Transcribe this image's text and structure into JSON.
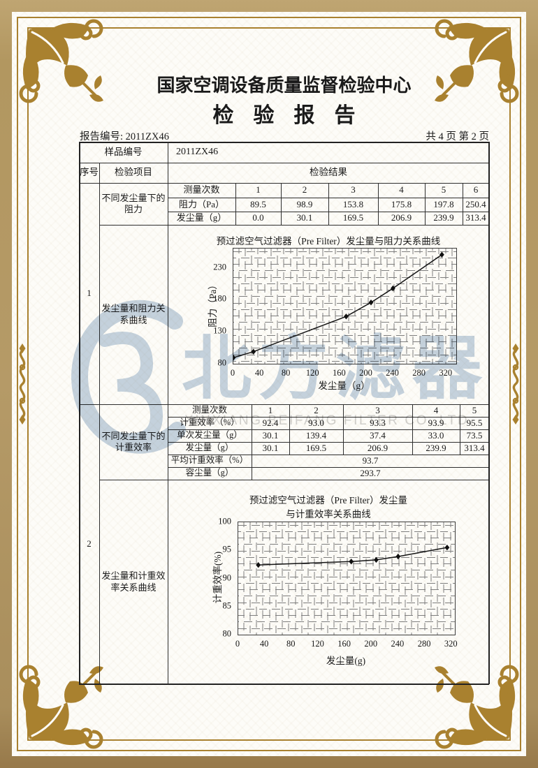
{
  "report": {
    "center_name": "国家空调设备质量监督检验中心",
    "title": "检验报告",
    "report_no": "报告编号: 2011ZX46",
    "page_info": "共 4 页 第 2 页",
    "sample_no_label": "样品编号",
    "sample_no_value": "2011ZX46"
  },
  "table": {
    "col_seq": "序号",
    "col_item": "检验项目",
    "col_result": "检验结果",
    "section1": {
      "seq": "1",
      "item_measure": "不同发尘量下的阻力",
      "item_curve": "发尘量和阻力关系曲线",
      "row_labels": [
        "测量次数",
        "阻力（Pa）",
        "发尘量（g）"
      ],
      "counts": [
        "1",
        "2",
        "3",
        "4",
        "5",
        "6"
      ],
      "resistance": [
        "89.5",
        "98.9",
        "153.8",
        "175.8",
        "197.8",
        "250.4"
      ],
      "dust": [
        "0.0",
        "30.1",
        "169.5",
        "206.9",
        "239.9",
        "313.4"
      ]
    },
    "section2": {
      "seq": "2",
      "item_measure": "不同发尘量下的计重效率",
      "item_curve": "发尘量和计重效率关系曲线",
      "row_labels": [
        "测量次数",
        "计重效率（%）",
        "单次发尘量（g）",
        "发尘量（g）",
        "平均计重效率（%）",
        "容尘量（g）"
      ],
      "counts": [
        "1",
        "2",
        "3",
        "4",
        "5"
      ],
      "efficiency": [
        "92.4",
        "93.0",
        "93.3",
        "93.9",
        "95.5"
      ],
      "single_dust": [
        "30.1",
        "139.4",
        "37.4",
        "33.0",
        "73.5"
      ],
      "cumulative_dust": [
        "30.1",
        "169.5",
        "206.9",
        "239.9",
        "313.4"
      ],
      "avg_efficiency": "93.7",
      "dust_capacity": "293.7"
    }
  },
  "chart_data": [
    {
      "type": "line",
      "title": "预过滤空气过滤器（Pre Filter）发尘量与阻力关系曲线",
      "xlabel": "发尘量（g）",
      "ylabel": "阻力（Pa）",
      "x": [
        0,
        30.1,
        169.5,
        206.9,
        239.9,
        313.4
      ],
      "y": [
        89.5,
        98.9,
        153.8,
        175.8,
        197.8,
        250.4
      ],
      "x_ticks": [
        0,
        40,
        80,
        120,
        160,
        200,
        240,
        280,
        320
      ],
      "y_ticks": [
        80,
        130,
        180,
        230
      ],
      "xlim": [
        0,
        335
      ],
      "ylim": [
        80,
        260
      ],
      "grid": true,
      "legend": "none",
      "marker": "diamond"
    },
    {
      "type": "line",
      "title": "预过滤空气过滤器（Pre Filter）发尘量",
      "title2": "与计重效率关系曲线",
      "xlabel": "发尘量(g)",
      "ylabel": "计重效率(%)",
      "x": [
        30.1,
        169.5,
        206.9,
        239.9,
        313.4
      ],
      "y": [
        92.4,
        93.0,
        93.3,
        93.9,
        95.5
      ],
      "x_ticks": [
        0,
        40,
        80,
        120,
        160,
        200,
        240,
        280,
        320
      ],
      "y_ticks": [
        80,
        85,
        90,
        95,
        100
      ],
      "xlim": [
        0,
        325
      ],
      "ylim": [
        80,
        100
      ],
      "grid": true,
      "legend": "none",
      "marker": "diamond"
    }
  ],
  "watermark": {
    "logo": "beifang-filter-logo",
    "text_cn": "北方滤器",
    "text_en": "XINXIANG BEIFANG FILTER CO.,LTD."
  },
  "colors": {
    "frame_gold": "#a9812f",
    "border_tan": "#b59a67",
    "watermark_blue": "#c6d4e3",
    "ink": "#1a1a1a"
  }
}
